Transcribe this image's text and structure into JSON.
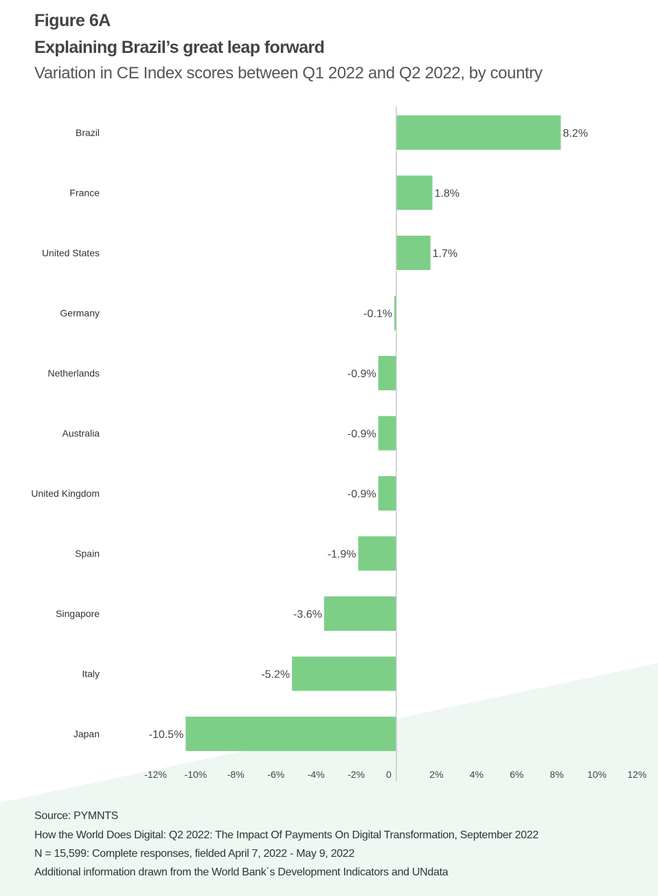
{
  "header": {
    "figure": "Figure 6A",
    "title": "Explaining Brazil’s great leap forward",
    "subtitle": "Variation in CE Index scores between Q1 2022 and Q2 2022, by country"
  },
  "chart_data": {
    "type": "bar",
    "orientation": "horizontal",
    "title": "Explaining Brazil’s great leap forward",
    "categories": [
      "Brazil",
      "France",
      "United States",
      "Germany",
      "Netherlands",
      "Australia",
      "United Kingdom",
      "Spain",
      "Singapore",
      "Italy",
      "Japan"
    ],
    "values": [
      8.2,
      1.8,
      1.7,
      -0.1,
      -0.9,
      -0.9,
      -0.9,
      -1.9,
      -3.6,
      -5.2,
      -10.5
    ],
    "data_labels": [
      "8.2%",
      "1.8%",
      "1.7%",
      "-0.1%",
      "-0.9%",
      "-0.9%",
      "-0.9%",
      "-1.9%",
      "-3.6%",
      "-5.2%",
      "-10.5%"
    ],
    "xlim": [
      -12,
      12
    ],
    "xticks": [
      -12,
      -10,
      -8,
      -6,
      -4,
      -2,
      0,
      2,
      4,
      6,
      8,
      10,
      12
    ],
    "xtick_labels": [
      "-12%",
      "-10%",
      "-8%",
      "-6%",
      "-4%",
      "-2%",
      "0",
      "2%",
      "4%",
      "6%",
      "8%",
      "10%",
      "12%"
    ],
    "xlabel": "",
    "ylabel": "",
    "grid": false,
    "bar_color": "#7dcf87"
  },
  "footer": {
    "source": "Source: PYMNTS",
    "report": "How the World Does Digital: Q2 2022: The Impact Of Payments On Digital Transformation, September 2022",
    "sample": "N = 15,599: Complete responses, fielded April 7, 2022 - May 9, 2022",
    "additional": "Additional information drawn from the World Bank´s  Development Indicators and UNdata"
  },
  "colors": {
    "background_accent": "#eef7f1",
    "text": "#444444"
  }
}
